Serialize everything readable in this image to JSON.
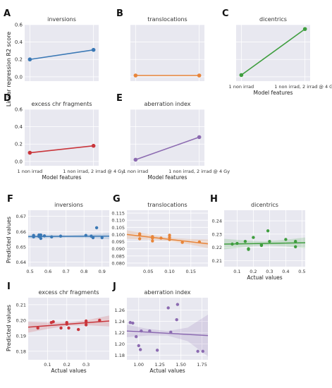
{
  "figure": {
    "ylabel_top": "Linear regression R2 score",
    "ylabel_bottom": "Predicted values"
  },
  "colors": {
    "blue": "#3a78b5",
    "orange": "#e8853a",
    "green": "#3f9e3f",
    "red": "#c9353b",
    "purple": "#8c6bb1",
    "panel_bg": "#e8e8f0",
    "grid": "#ffffff"
  },
  "chart_data": [
    {
      "id": "A",
      "panel_letter": "A",
      "type": "line",
      "title": "inversions",
      "color": "blue",
      "ylabel": "Linear regression R2 score",
      "xlabel": "",
      "categories": [
        "1 non irrad",
        "1 non irrad, 2 irrad @ 4 Gy"
      ],
      "show_xticks": false,
      "values": [
        0.2,
        0.31
      ],
      "ylim": [
        -0.05,
        0.6
      ],
      "yticks": [
        0.0,
        0.2,
        0.4,
        0.6
      ],
      "yfmt": 1
    },
    {
      "id": "B",
      "panel_letter": "B",
      "type": "line",
      "title": "translocations",
      "color": "orange",
      "xlabel": "",
      "categories": [
        "1 non irrad",
        "1 non irrad, 2 irrad @ 4 Gy"
      ],
      "show_xticks": false,
      "values": [
        0.015,
        0.015
      ],
      "ylim": [
        -0.05,
        0.6
      ],
      "yticks": [],
      "yfmt": 1
    },
    {
      "id": "C",
      "panel_letter": "C",
      "type": "line",
      "title": "dicentrics",
      "color": "green",
      "xlabel": "Model features",
      "categories": [
        "1 non irrad",
        "1 non irrad, 2 irrad @ 4 Gy"
      ],
      "show_xticks": true,
      "values": [
        0.02,
        0.55
      ],
      "ylim": [
        -0.05,
        0.6
      ],
      "yticks": [],
      "yfmt": 1
    },
    {
      "id": "D",
      "panel_letter": "D",
      "type": "line",
      "title": "excess chr fragments",
      "color": "red",
      "ylabel": "Linear regression R2 score",
      "xlabel": "Model features",
      "categories": [
        "1 non irrad",
        "1 non irrad, 2 irrad @ 4 Gy"
      ],
      "show_xticks": true,
      "values": [
        0.1,
        0.18
      ],
      "ylim": [
        -0.05,
        0.6
      ],
      "yticks": [
        0.0,
        0.2,
        0.4,
        0.6
      ],
      "yfmt": 1
    },
    {
      "id": "E",
      "panel_letter": "E",
      "type": "line",
      "title": "aberration index",
      "color": "purple",
      "xlabel": "Model features",
      "categories": [
        "1 non irrad",
        "1 non irrad, 2 irrad @ 4 Gy"
      ],
      "show_xticks": true,
      "values": [
        0.02,
        0.28
      ],
      "ylim": [
        -0.05,
        0.6
      ],
      "yticks": [],
      "yfmt": 1
    },
    {
      "id": "F",
      "panel_letter": "F",
      "type": "scatter",
      "title": "inversions",
      "color": "blue",
      "ylabel": "Predicted values",
      "xlabel": "",
      "xlim": [
        0.49,
        0.94
      ],
      "ylim": [
        0.637,
        0.674
      ],
      "xticks": [
        0.5,
        0.6,
        0.7,
        0.8,
        0.9
      ],
      "yticks": [
        0.64,
        0.65,
        0.66,
        0.67
      ],
      "xfmt": 1,
      "yfmt": 2,
      "points": [
        [
          0.52,
          0.6565
        ],
        [
          0.52,
          0.6575
        ],
        [
          0.55,
          0.6572
        ],
        [
          0.55,
          0.6568
        ],
        [
          0.55,
          0.6578
        ],
        [
          0.56,
          0.6555
        ],
        [
          0.56,
          0.6578
        ],
        [
          0.58,
          0.6572
        ],
        [
          0.62,
          0.6565
        ],
        [
          0.67,
          0.657
        ],
        [
          0.81,
          0.6575
        ],
        [
          0.84,
          0.657
        ],
        [
          0.85,
          0.656
        ],
        [
          0.87,
          0.6625
        ],
        [
          0.9,
          0.656
        ]
      ],
      "fit": [
        [
          0.49,
          0.6567
        ],
        [
          0.94,
          0.657
        ]
      ],
      "band": [
        0.0012,
        0.0012,
        0.0008,
        0.0012,
        0.002
      ]
    },
    {
      "id": "G",
      "panel_letter": "G",
      "type": "scatter",
      "title": "translocations",
      "color": "orange",
      "xlabel": "",
      "xlim": [
        0.0,
        0.19
      ],
      "ylim": [
        0.0775,
        0.117
      ],
      "xticks": [
        0.05,
        0.1,
        0.15
      ],
      "yticks": [
        0.08,
        0.085,
        0.09,
        0.095,
        0.1,
        0.105,
        0.11,
        0.115
      ],
      "xfmt": 2,
      "yfmt": 3,
      "points": [
        [
          0.03,
          0.0995
        ],
        [
          0.03,
          0.097
        ],
        [
          0.03,
          0.1005
        ],
        [
          0.06,
          0.0985
        ],
        [
          0.06,
          0.0955
        ],
        [
          0.06,
          0.0975
        ],
        [
          0.08,
          0.0975
        ],
        [
          0.1,
          0.098
        ],
        [
          0.1,
          0.0965
        ],
        [
          0.1,
          0.0995
        ],
        [
          0.13,
          0.0945
        ],
        [
          0.17,
          0.0948
        ]
      ],
      "fit": [
        [
          0.0,
          0.1
        ],
        [
          0.19,
          0.0935
        ]
      ],
      "band": [
        0.003,
        0.002,
        0.0012,
        0.0018,
        0.003
      ]
    },
    {
      "id": "H",
      "panel_letter": "H",
      "type": "scatter",
      "title": "dicentrics",
      "color": "green",
      "xlabel": "Actual values",
      "xlim": [
        0.02,
        0.52
      ],
      "ylim": [
        0.2055,
        0.248
      ],
      "xticks": [
        0.1,
        0.2,
        0.3,
        0.4,
        0.5
      ],
      "yticks": [
        0.21,
        0.22,
        0.23,
        0.24
      ],
      "xfmt": 1,
      "yfmt": 2,
      "points": [
        [
          0.07,
          0.2225
        ],
        [
          0.1,
          0.223
        ],
        [
          0.15,
          0.2245
        ],
        [
          0.17,
          0.219
        ],
        [
          0.17,
          0.2185
        ],
        [
          0.2,
          0.2275
        ],
        [
          0.25,
          0.222
        ],
        [
          0.25,
          0.2215
        ],
        [
          0.29,
          0.2325
        ],
        [
          0.3,
          0.2245
        ],
        [
          0.4,
          0.226
        ],
        [
          0.46,
          0.2245
        ],
        [
          0.46,
          0.2205
        ]
      ],
      "fit": [
        [
          0.02,
          0.2225
        ],
        [
          0.52,
          0.2235
        ]
      ],
      "band": [
        0.004,
        0.0025,
        0.0015,
        0.0025,
        0.004
      ]
    },
    {
      "id": "I",
      "panel_letter": "I",
      "type": "scatter",
      "title": "excess chr fragments",
      "color": "red",
      "ylabel": "Predicted values",
      "xlabel": "Actual values",
      "xlim": [
        0.0,
        0.42
      ],
      "ylim": [
        0.1745,
        0.2145
      ],
      "xticks": [
        0.1,
        0.2,
        0.3
      ],
      "yticks": [
        0.18,
        0.19,
        0.2,
        0.21
      ],
      "xfmt": 1,
      "yfmt": 2,
      "points": [
        [
          0.05,
          0.195
        ],
        [
          0.12,
          0.1985
        ],
        [
          0.13,
          0.199
        ],
        [
          0.17,
          0.195
        ],
        [
          0.2,
          0.1975
        ],
        [
          0.2,
          0.1985
        ],
        [
          0.21,
          0.195
        ],
        [
          0.26,
          0.194
        ],
        [
          0.3,
          0.1995
        ],
        [
          0.3,
          0.1985
        ],
        [
          0.3,
          0.197
        ],
        [
          0.37,
          0.2
        ]
      ],
      "fit": [
        [
          0.0,
          0.1955
        ],
        [
          0.42,
          0.1995
        ]
      ],
      "band": [
        0.0035,
        0.002,
        0.001,
        0.0018,
        0.0035
      ]
    },
    {
      "id": "J",
      "panel_letter": "J",
      "type": "scatter",
      "title": "aberration index",
      "color": "purple",
      "xlabel": "Actual values",
      "xlim": [
        0.86,
        1.82
      ],
      "ylim": [
        1.172,
        1.282
      ],
      "xticks": [
        1.0,
        1.25,
        1.5,
        1.75
      ],
      "yticks": [
        1.18,
        1.2,
        1.22,
        1.24,
        1.26
      ],
      "xfmt": 2,
      "yfmt": 2,
      "points": [
        [
          0.9,
          1.238
        ],
        [
          0.93,
          1.237
        ],
        [
          0.97,
          1.213
        ],
        [
          1.0,
          1.197
        ],
        [
          1.02,
          1.19
        ],
        [
          1.03,
          1.223
        ],
        [
          1.13,
          1.223
        ],
        [
          1.22,
          1.189
        ],
        [
          1.35,
          1.264
        ],
        [
          1.38,
          1.221
        ],
        [
          1.45,
          1.243
        ],
        [
          1.46,
          1.27
        ],
        [
          1.7,
          1.187
        ],
        [
          1.76,
          1.187
        ]
      ],
      "fit": [
        [
          0.86,
          1.223
        ],
        [
          1.82,
          1.215
        ]
      ],
      "band": [
        0.011,
        0.006,
        0.004,
        0.012,
        0.037
      ]
    }
  ]
}
